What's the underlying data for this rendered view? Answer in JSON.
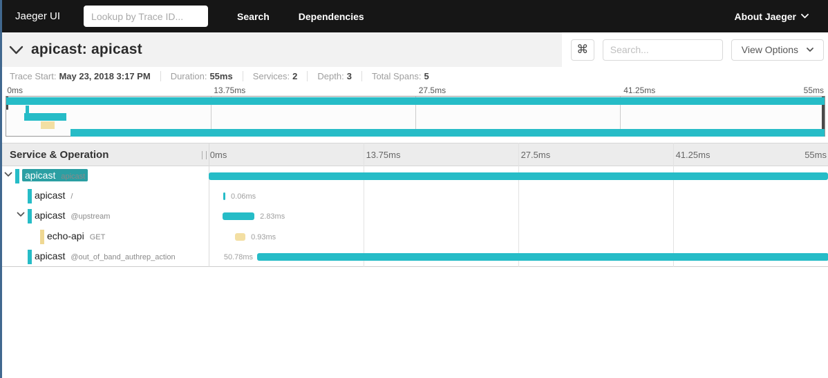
{
  "colors": {
    "teal_bar": "#26bcc7",
    "gold_bar": "#f3dfa3",
    "gold_block": "#efd893",
    "selected_name_bg": "#2b9fa3",
    "nav_bg": "#161616",
    "window_edge": "#41688f",
    "scrubber": "#4a4a4a"
  },
  "nav": {
    "brand": "Jaeger UI",
    "trace_lookup_placeholder": "Lookup by Trace ID...",
    "items": [
      {
        "label": "Search"
      },
      {
        "label": "Dependencies"
      }
    ],
    "about": "About Jaeger"
  },
  "trace_header": {
    "title": "apicast: apicast",
    "shortcut_button": "⌘",
    "search_placeholder": "Search...",
    "view_options_label": "View Options"
  },
  "trace_meta": {
    "items": [
      {
        "label": "Trace Start:",
        "value": "May 23, 2018 3:17 PM"
      },
      {
        "label": "Duration:",
        "value": "55ms"
      },
      {
        "label": "Services:",
        "value": "2"
      },
      {
        "label": "Depth:",
        "value": "3"
      },
      {
        "label": "Total Spans:",
        "value": "5"
      }
    ]
  },
  "timeline": {
    "total_ms": 55,
    "ticks": [
      "0ms",
      "13.75ms",
      "27.5ms",
      "41.25ms",
      "55ms"
    ],
    "table_name_header": "Service & Operation"
  },
  "spans": [
    {
      "service": "apicast",
      "operation": "apicast",
      "depth": 0,
      "selected": true,
      "expander": true,
      "color": "teal",
      "start_ms": 0,
      "duration_ms": 55,
      "duration_label": "",
      "label_side": "none"
    },
    {
      "service": "apicast",
      "operation": "/",
      "depth": 1,
      "selected": false,
      "expander": false,
      "color": "teal",
      "start_ms": 1.29,
      "duration_ms": 0.06,
      "duration_label": "0.06ms",
      "label_side": "right"
    },
    {
      "service": "apicast",
      "operation": "@upstream",
      "depth": 1,
      "selected": false,
      "expander": true,
      "color": "teal",
      "start_ms": 1.23,
      "duration_ms": 2.83,
      "duration_label": "2.83ms",
      "label_side": "right"
    },
    {
      "service": "echo-api",
      "operation": "GET",
      "depth": 2,
      "selected": false,
      "expander": false,
      "color": "gold",
      "start_ms": 2.33,
      "duration_ms": 0.93,
      "duration_label": "0.93ms",
      "label_side": "right"
    },
    {
      "service": "apicast",
      "operation": "@out_of_band_authrep_action",
      "depth": 1,
      "selected": false,
      "expander": false,
      "color": "teal",
      "start_ms": 4.3,
      "duration_ms": 50.78,
      "duration_label": "50.78ms",
      "label_side": "left"
    }
  ]
}
